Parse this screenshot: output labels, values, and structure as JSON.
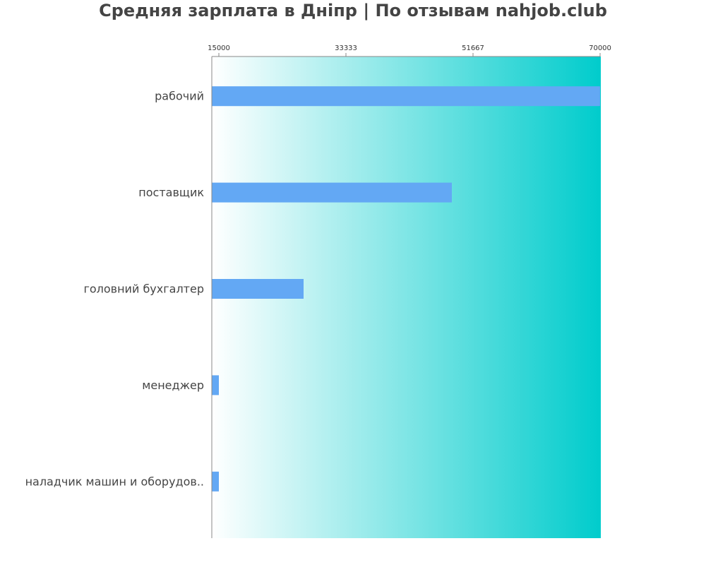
{
  "chart_data": {
    "type": "bar",
    "orientation": "horizontal",
    "title": "Средняя зарплата в Дніпр | По отзывам nahjob.club",
    "xlabel": "",
    "ylabel": "",
    "xlim": [
      15000,
      70000
    ],
    "xticks": [
      "15000",
      "33333",
      "51667",
      "70000"
    ],
    "categories": [
      "рабочий",
      "поставщик",
      "головний бухгалтер",
      "менеджер",
      "наладчик машин и оборудов.."
    ],
    "values": [
      70000,
      49000,
      28000,
      16000,
      16000
    ],
    "grid": false,
    "legend": "none",
    "bar_color": "#63a8f4",
    "background_gradient": [
      "#ffffff",
      "#00cccc"
    ],
    "axis_color": "#888888"
  }
}
